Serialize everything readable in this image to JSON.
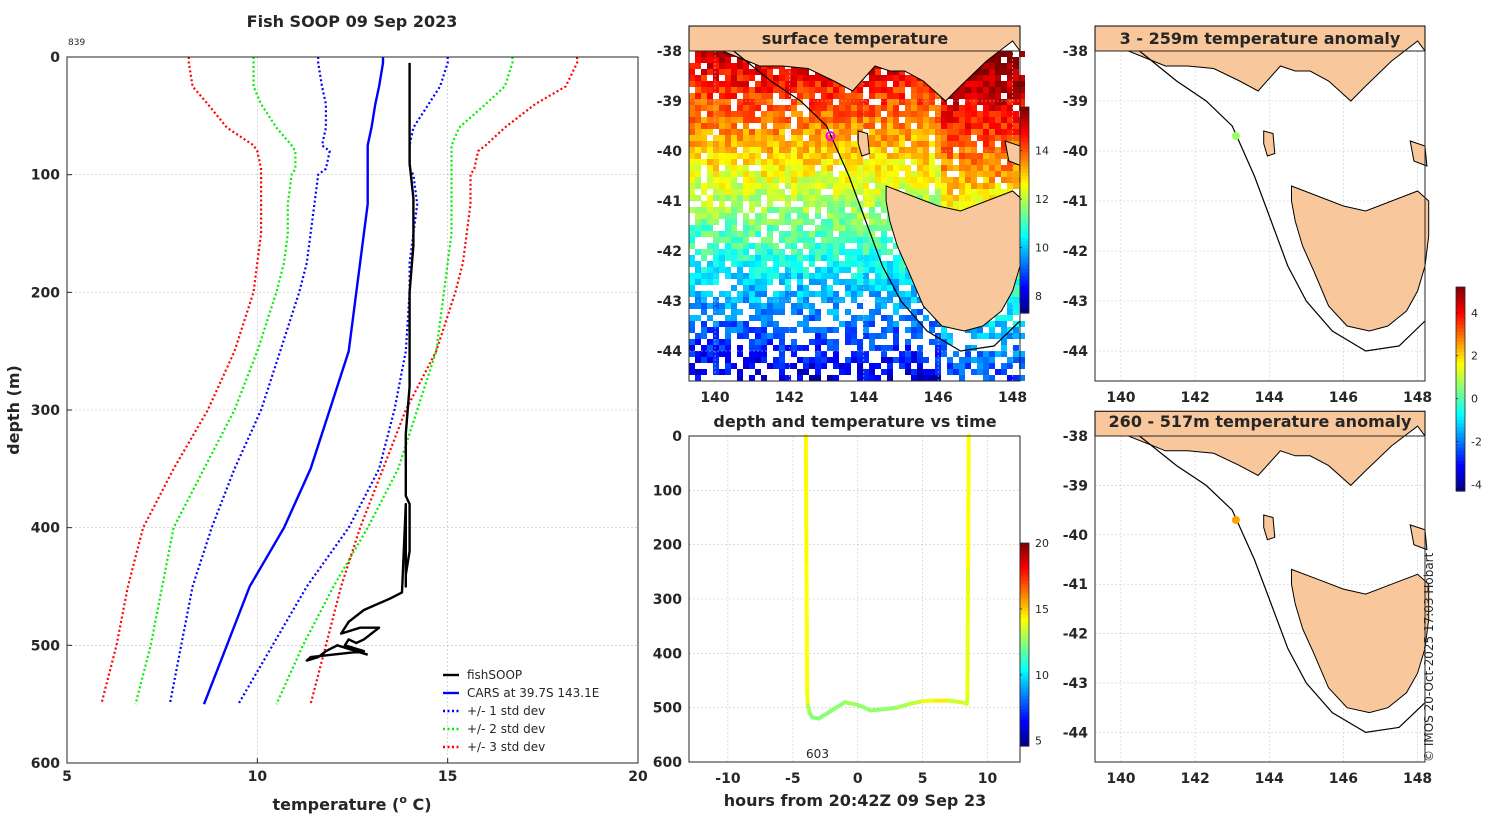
{
  "watermark": "© IMOS 20-Oct-2025 17:03 Hobart",
  "chart_data": [
    {
      "type": "line",
      "title": "Fish SOOP 09 Sep 2023",
      "id_label": "839",
      "xlabel": "temperature (",
      "xlabel_super": "o",
      "xlabel_tail": " C)",
      "ylabel": "depth (m)",
      "xlim": [
        5,
        20
      ],
      "ylim": [
        0,
        600
      ],
      "y_reversed": true,
      "xticks": [
        5,
        10,
        15,
        20
      ],
      "yticks": [
        0,
        100,
        200,
        300,
        400,
        500,
        600
      ],
      "grid": true,
      "legend_position": "bottom-right",
      "depth_levels": [
        0,
        5,
        25,
        40,
        60,
        75,
        80,
        95,
        100,
        125,
        150,
        175,
        200,
        250,
        300,
        350,
        400,
        450,
        500,
        550
      ],
      "series": [
        {
          "name": "CARS at 39.7S 143.1E",
          "style": "solid",
          "color": "#0000ff",
          "values": [
            13.3,
            13.3,
            13.2,
            13.1,
            13.0,
            12.9,
            12.9,
            12.9,
            12.9,
            12.9,
            12.8,
            12.7,
            12.6,
            12.4,
            11.9,
            11.4,
            10.7,
            9.8,
            9.2,
            8.6
          ]
        },
        {
          "name": "+/- 1 std dev (low)",
          "style": "dotted",
          "color": "#0000ff",
          "values": [
            11.6,
            11.6,
            11.7,
            11.8,
            11.8,
            11.7,
            11.9,
            11.8,
            11.6,
            11.5,
            11.4,
            11.3,
            11.1,
            10.6,
            10.1,
            9.4,
            8.8,
            8.3,
            8.0,
            7.7
          ]
        },
        {
          "name": "+/- 1 std dev (high)",
          "style": "dotted",
          "color": "#0000ff",
          "values": [
            15.0,
            15.0,
            14.8,
            14.5,
            14.1,
            14.0,
            14.0,
            14.0,
            14.1,
            14.2,
            14.1,
            14.0,
            14.0,
            13.9,
            13.6,
            13.2,
            12.4,
            11.3,
            10.4,
            9.5
          ]
        },
        {
          "name": "+/- 2 std dev (low)",
          "style": "dotted",
          "color": "#00ee00",
          "values": [
            9.9,
            9.9,
            9.9,
            10.1,
            10.5,
            10.9,
            11.0,
            11.0,
            10.9,
            10.8,
            10.8,
            10.7,
            10.5,
            10.0,
            9.4,
            8.6,
            7.8,
            7.5,
            7.2,
            6.8
          ]
        },
        {
          "name": "+/- 2 std dev (high)",
          "style": "dotted",
          "color": "#00ee00",
          "values": [
            16.7,
            16.7,
            16.5,
            16.0,
            15.3,
            15.1,
            15.1,
            15.1,
            15.1,
            15.1,
            15.1,
            15.0,
            14.9,
            14.7,
            14.2,
            13.7,
            12.9,
            12.0,
            11.2,
            10.5
          ]
        },
        {
          "name": "+/- 3 std dev (low)",
          "style": "dotted",
          "color": "#ff0000",
          "values": [
            8.2,
            8.2,
            8.3,
            8.7,
            9.2,
            9.9,
            10.0,
            10.1,
            10.1,
            10.1,
            10.1,
            10.0,
            9.9,
            9.4,
            8.7,
            7.8,
            7.0,
            6.6,
            6.3,
            5.9
          ]
        },
        {
          "name": "+/- 3 std dev (high)",
          "style": "dotted",
          "color": "#ff0000",
          "values": [
            18.4,
            18.4,
            18.1,
            17.3,
            16.5,
            16.0,
            15.8,
            15.7,
            15.6,
            15.6,
            15.5,
            15.4,
            15.2,
            14.7,
            13.9,
            13.3,
            12.7,
            12.2,
            11.8,
            11.4
          ]
        }
      ],
      "fishsoop": {
        "name": "fishSOOP",
        "color": "#000000",
        "x": [
          14.0,
          14.0,
          14.0,
          14.0,
          14.1,
          14.1,
          14.0,
          14.0,
          14.0,
          13.9,
          13.9,
          13.9,
          13.9,
          14.0,
          14.0,
          13.9,
          13.9,
          13.9,
          13.9,
          13.9,
          13.8,
          13.5,
          12.8,
          12.4,
          12.2,
          12.7,
          13.2,
          12.8,
          12.6,
          12.4,
          12.3,
          12.8,
          11.4,
          11.3,
          11.6,
          11.8,
          12.1,
          12.6,
          12.9
        ],
        "depth": [
          5,
          30,
          60,
          90,
          120,
          160,
          200,
          240,
          280,
          320,
          350,
          362,
          373,
          380,
          420,
          440,
          450,
          420,
          400,
          380,
          455,
          460,
          470,
          480,
          490,
          485,
          485,
          495,
          498,
          495,
          500,
          505,
          510,
          513,
          510,
          505,
          500,
          505,
          508
        ]
      },
      "legend": [
        "fishSOOP",
        "CARS at 39.7S 143.1E",
        "+/- 1 std dev",
        "+/- 2 std dev",
        "+/- 3 std dev"
      ]
    },
    {
      "type": "heatmap",
      "title": "surface temperature",
      "xlim": [
        139.3,
        148.2
      ],
      "ylim": [
        -44.6,
        -38.0
      ],
      "xticks": [
        140,
        142,
        144,
        146,
        148
      ],
      "yticks": [
        -38,
        -39,
        -40,
        -41,
        -42,
        -43,
        -44
      ],
      "colorbar": {
        "min": 7.3,
        "max": 15.8,
        "ticks": [
          8,
          10,
          12,
          14
        ]
      },
      "marker": {
        "lon": 143.1,
        "lat": -39.7,
        "color": "#ff00ff"
      }
    },
    {
      "type": "scatter",
      "title": "depth and temperature vs time",
      "xlabel": "hours from 20:42Z 09 Sep 23",
      "xlim": [
        -13,
        12.5
      ],
      "ylim": [
        0,
        600
      ],
      "y_reversed": true,
      "xticks": [
        -10,
        -5,
        0,
        5,
        10
      ],
      "yticks": [
        0,
        100,
        200,
        300,
        400,
        500,
        600
      ],
      "annotation": "603",
      "colorbar": {
        "min": 4.6,
        "max": 20,
        "ticks": [
          5,
          10,
          15,
          20
        ]
      },
      "hours": [
        -4.0,
        -3.95,
        -3.9,
        -3.85,
        -3.7,
        -3.5,
        -3.0,
        -2.0,
        -1.0,
        0.0,
        1.0,
        2.0,
        3.0,
        4.0,
        5.0,
        6.0,
        7.0,
        8.0,
        8.4,
        8.45,
        8.5,
        8.55
      ],
      "depth": [
        0,
        240,
        470,
        495,
        510,
        518,
        520,
        505,
        490,
        495,
        505,
        503,
        500,
        493,
        488,
        487,
        487,
        490,
        493,
        480,
        240,
        0
      ],
      "temperature": [
        14.3,
        14.2,
        14.0,
        13.0,
        12.6,
        12.4,
        12.4,
        12.5,
        12.8,
        12.6,
        12.5,
        12.6,
        12.9,
        13.3,
        14.0,
        14.5,
        13.5,
        13.6,
        13.5,
        13.9,
        14.2,
        14.3
      ]
    },
    {
      "type": "scatter",
      "title": "3 - 259m temperature anomaly",
      "xlim": [
        139.3,
        148.2
      ],
      "ylim": [
        -44.6,
        -38.0
      ],
      "xticks": [
        140,
        142,
        144,
        146,
        148
      ],
      "yticks": [
        -38,
        -39,
        -40,
        -41,
        -42,
        -43,
        -44
      ],
      "points": [
        {
          "lon": 143.1,
          "lat": -39.7,
          "anomaly": 0.7
        }
      ]
    },
    {
      "type": "scatter",
      "title": "260 - 517m temperature anomaly",
      "xlim": [
        139.3,
        148.2
      ],
      "ylim": [
        -44.6,
        -38.0
      ],
      "xticks": [
        140,
        142,
        144,
        146,
        148
      ],
      "yticks": [
        -38,
        -39,
        -40,
        -41,
        -42,
        -43,
        -44
      ],
      "points": [
        {
          "lon": 143.1,
          "lat": -39.7,
          "anomaly": 2.5
        }
      ],
      "colorbar": {
        "min": -4.3,
        "max": 5.2,
        "ticks": [
          -4,
          -2,
          0,
          2,
          4
        ]
      }
    }
  ]
}
